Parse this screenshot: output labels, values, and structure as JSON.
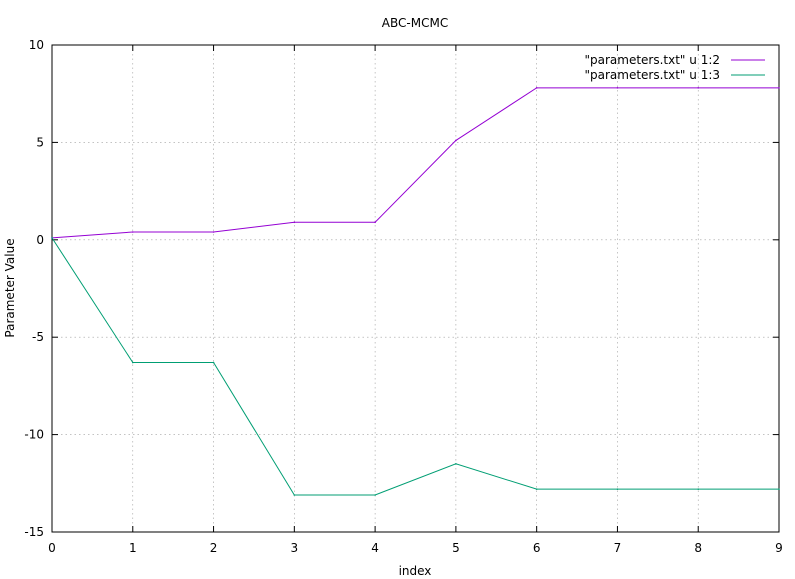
{
  "chart_data": {
    "type": "line",
    "title": "ABC-MCMC",
    "xlabel": "index",
    "ylabel": "Parameter Value",
    "xlim": [
      0,
      9
    ],
    "ylim": [
      -15,
      10
    ],
    "xticks": [
      0,
      1,
      2,
      3,
      4,
      5,
      6,
      7,
      8,
      9
    ],
    "yticks": [
      10,
      5,
      0,
      -5,
      -10,
      -15
    ],
    "grid": true,
    "legend_position": "top-right",
    "x": [
      0,
      1,
      2,
      3,
      4,
      5,
      6,
      7,
      8,
      9
    ],
    "series": [
      {
        "name": "\"parameters.txt\" u 1:2",
        "color": "#9400d3",
        "values": [
          0.1,
          0.4,
          0.4,
          0.9,
          0.9,
          5.1,
          7.8,
          7.8,
          7.8,
          7.8
        ]
      },
      {
        "name": "\"parameters.txt\" u 1:3",
        "color": "#009e73",
        "values": [
          0.1,
          -6.3,
          -6.3,
          -13.1,
          -13.1,
          -11.5,
          -12.8,
          -12.8,
          -12.8,
          -12.8
        ]
      }
    ]
  }
}
